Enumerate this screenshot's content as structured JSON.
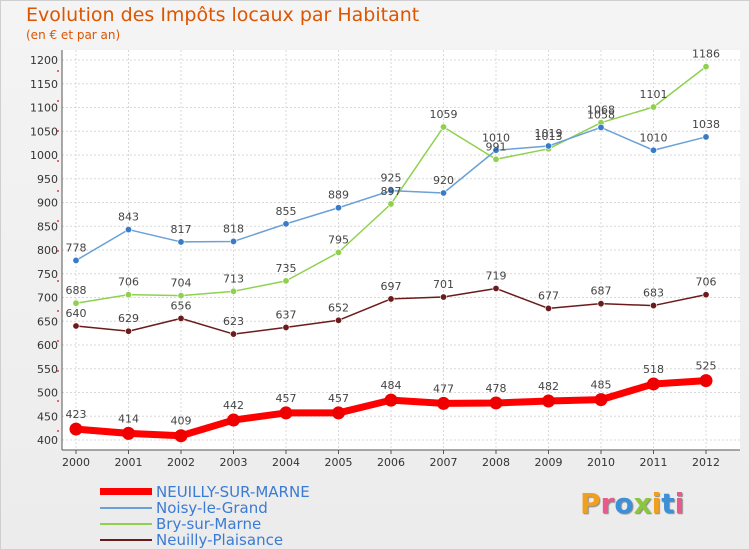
{
  "header": {
    "title": "Evolution des Impôts locaux par Habitant",
    "subtitle": "(en € et par an)"
  },
  "brand": {
    "letters": [
      "P",
      "r",
      "o",
      "x",
      "i",
      "t",
      "i"
    ],
    "colors": [
      "#f0a020",
      "#e85a8c",
      "#3d8fd6",
      "#8cc63f",
      "#f0a020",
      "#3d8fd6",
      "#e85a8c"
    ]
  },
  "chart_data": {
    "type": "line",
    "title": "Evolution des Impôts locaux par Habitant",
    "subtitle": "(en € et par an)",
    "x": [
      "2000",
      "2001",
      "2002",
      "2003",
      "2004",
      "2005",
      "2006",
      "2007",
      "2008",
      "2009",
      "2010",
      "2011",
      "2012"
    ],
    "ylim": [
      400,
      1200
    ],
    "yticks": [
      400,
      450,
      500,
      550,
      600,
      650,
      700,
      750,
      800,
      850,
      900,
      950,
      1000,
      1050,
      1100,
      1150,
      1200
    ],
    "grid": true,
    "legend_position": "bottom-left",
    "series": [
      {
        "name": "Bry-sur-Marne",
        "color": "#8fd14f",
        "point_color": "#8fd14f",
        "values": [
          688,
          706,
          704,
          713,
          735,
          795,
          897,
          1059,
          991,
          1013,
          1068,
          1101,
          1186
        ],
        "show_labels": true
      },
      {
        "name": "Noisy-le-Grand",
        "color": "#6aa1d6",
        "point_color": "#3a7bc8",
        "values": [
          778,
          843,
          817,
          818,
          855,
          889,
          925,
          920,
          1010,
          1019,
          1058,
          1010,
          1038
        ],
        "show_labels": true
      },
      {
        "name": "Neuilly-Plaisance",
        "color": "#6b1b1b",
        "point_color": "#6b1b1b",
        "values": [
          640,
          629,
          656,
          623,
          637,
          652,
          697,
          701,
          719,
          677,
          687,
          683,
          706
        ],
        "show_labels": true
      },
      {
        "name": "NEUILLY-SUR-MARNE",
        "color": "#ff0000",
        "point_color": "#ee0000",
        "values": [
          423,
          414,
          409,
          442,
          457,
          457,
          484,
          477,
          478,
          482,
          485,
          518,
          525
        ],
        "show_labels": true
      }
    ],
    "legend_order": [
      "NEUILLY-SUR-MARNE",
      "Noisy-le-Grand",
      "Bry-sur-Marne",
      "Neuilly-Plaisance"
    ]
  }
}
